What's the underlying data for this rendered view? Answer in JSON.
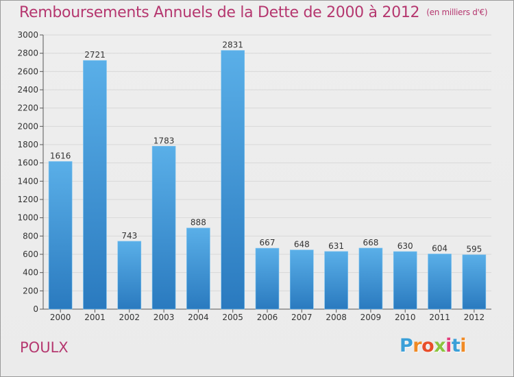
{
  "header": {
    "title": "Remboursements Annuels de la Dette de 2000 à 2012",
    "unit": "(en milliers d'€)"
  },
  "footer": {
    "commune": "POULX",
    "brand": "Proxiti"
  },
  "colors": {
    "title": "#b5376f",
    "bar_top": "#5aafe8",
    "bar_bottom": "#2a7abf",
    "grid": "#d8d8d8",
    "brand_letters": [
      "#3a9fd8",
      "#f08a24",
      "#e84e2a",
      "#8bc43f",
      "#e23b7a",
      "#3a9fd8",
      "#f08a24"
    ]
  },
  "chart_data": {
    "type": "bar",
    "title": "Remboursements Annuels de la Dette de 2000 à 2012",
    "xlabel": "",
    "ylabel": "",
    "ylim": [
      0,
      3000
    ],
    "yticks": [
      0,
      200,
      400,
      600,
      800,
      1000,
      1200,
      1400,
      1600,
      1800,
      2000,
      2200,
      2400,
      2600,
      2800,
      3000
    ],
    "categories": [
      "2000",
      "2001",
      "2002",
      "2003",
      "2004",
      "2005",
      "2006",
      "2007",
      "2008",
      "2009",
      "2010",
      "2011",
      "2012"
    ],
    "values": [
      1616,
      2721,
      743,
      1783,
      888,
      2831,
      667,
      648,
      631,
      668,
      630,
      604,
      595
    ],
    "grid": true,
    "legend": "none"
  }
}
